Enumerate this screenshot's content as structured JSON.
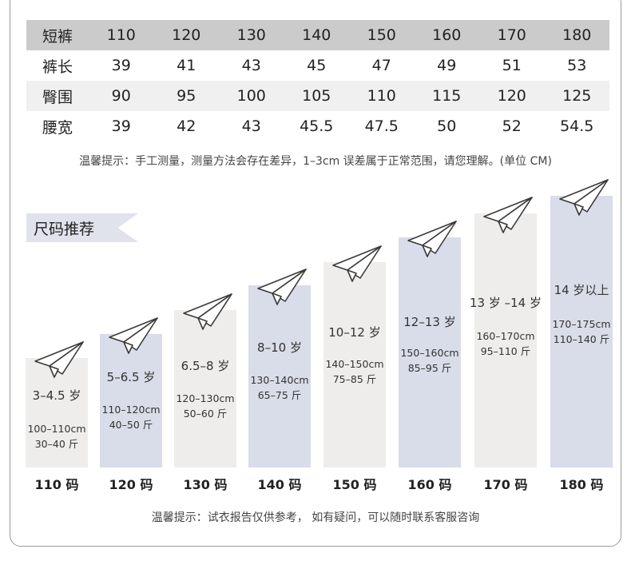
{
  "size_table": {
    "header": {
      "label": "短裤",
      "values": [
        "110",
        "120",
        "130",
        "140",
        "150",
        "160",
        "170",
        "180"
      ]
    },
    "rows": [
      {
        "label": "裤长",
        "values": [
          "39",
          "41",
          "43",
          "45",
          "47",
          "49",
          "51",
          "53"
        ]
      },
      {
        "label": "臀围",
        "values": [
          "90",
          "95",
          "100",
          "105",
          "110",
          "115",
          "120",
          "125"
        ]
      },
      {
        "label": "腰宽",
        "values": [
          "39",
          "42",
          "43",
          "45.5",
          "47.5",
          "50",
          "52",
          "54.5"
        ]
      }
    ]
  },
  "measure_note": "温馨提示：手工测量，测量方法会存在差异，1–3cm 误差属于正常范围，请您理解。(单位 CM)",
  "recommend_title": "尺码推荐",
  "recommendations": [
    {
      "age": "3–4.5 岁",
      "height": "100–110cm",
      "weight": "30–40 斤",
      "size": "110 码"
    },
    {
      "age": "5–6.5 岁",
      "height": "110–120cm",
      "weight": "40–50 斤",
      "size": "120 码"
    },
    {
      "age": "6.5–8 岁",
      "height": "120–130cm",
      "weight": "50–60 斤",
      "size": "130 码"
    },
    {
      "age": "8–10 岁",
      "height": "130–140cm",
      "weight": "65–75 斤",
      "size": "140 码"
    },
    {
      "age": "10–12 岁",
      "height": "140–150cm",
      "weight": "75–85 斤",
      "size": "150 码"
    },
    {
      "age": "12–13 岁",
      "height": "150–160cm",
      "weight": "85–95 斤",
      "size": "160 码"
    },
    {
      "age": "13 岁 –14 岁",
      "height": "160–170cm",
      "weight": "95–110 斤",
      "size": "170 码"
    },
    {
      "age": "14 岁以上",
      "height": "170–175cm",
      "weight": "110–140 斤",
      "size": "180 码"
    }
  ],
  "bar_colors": {
    "light": "#eeedeb",
    "blue": "#d9dce9"
  },
  "icon": "paper-plane-icon",
  "report_note": "温馨提示：试衣报告仅供参考， 如有疑问，可以随时联系客服咨询"
}
